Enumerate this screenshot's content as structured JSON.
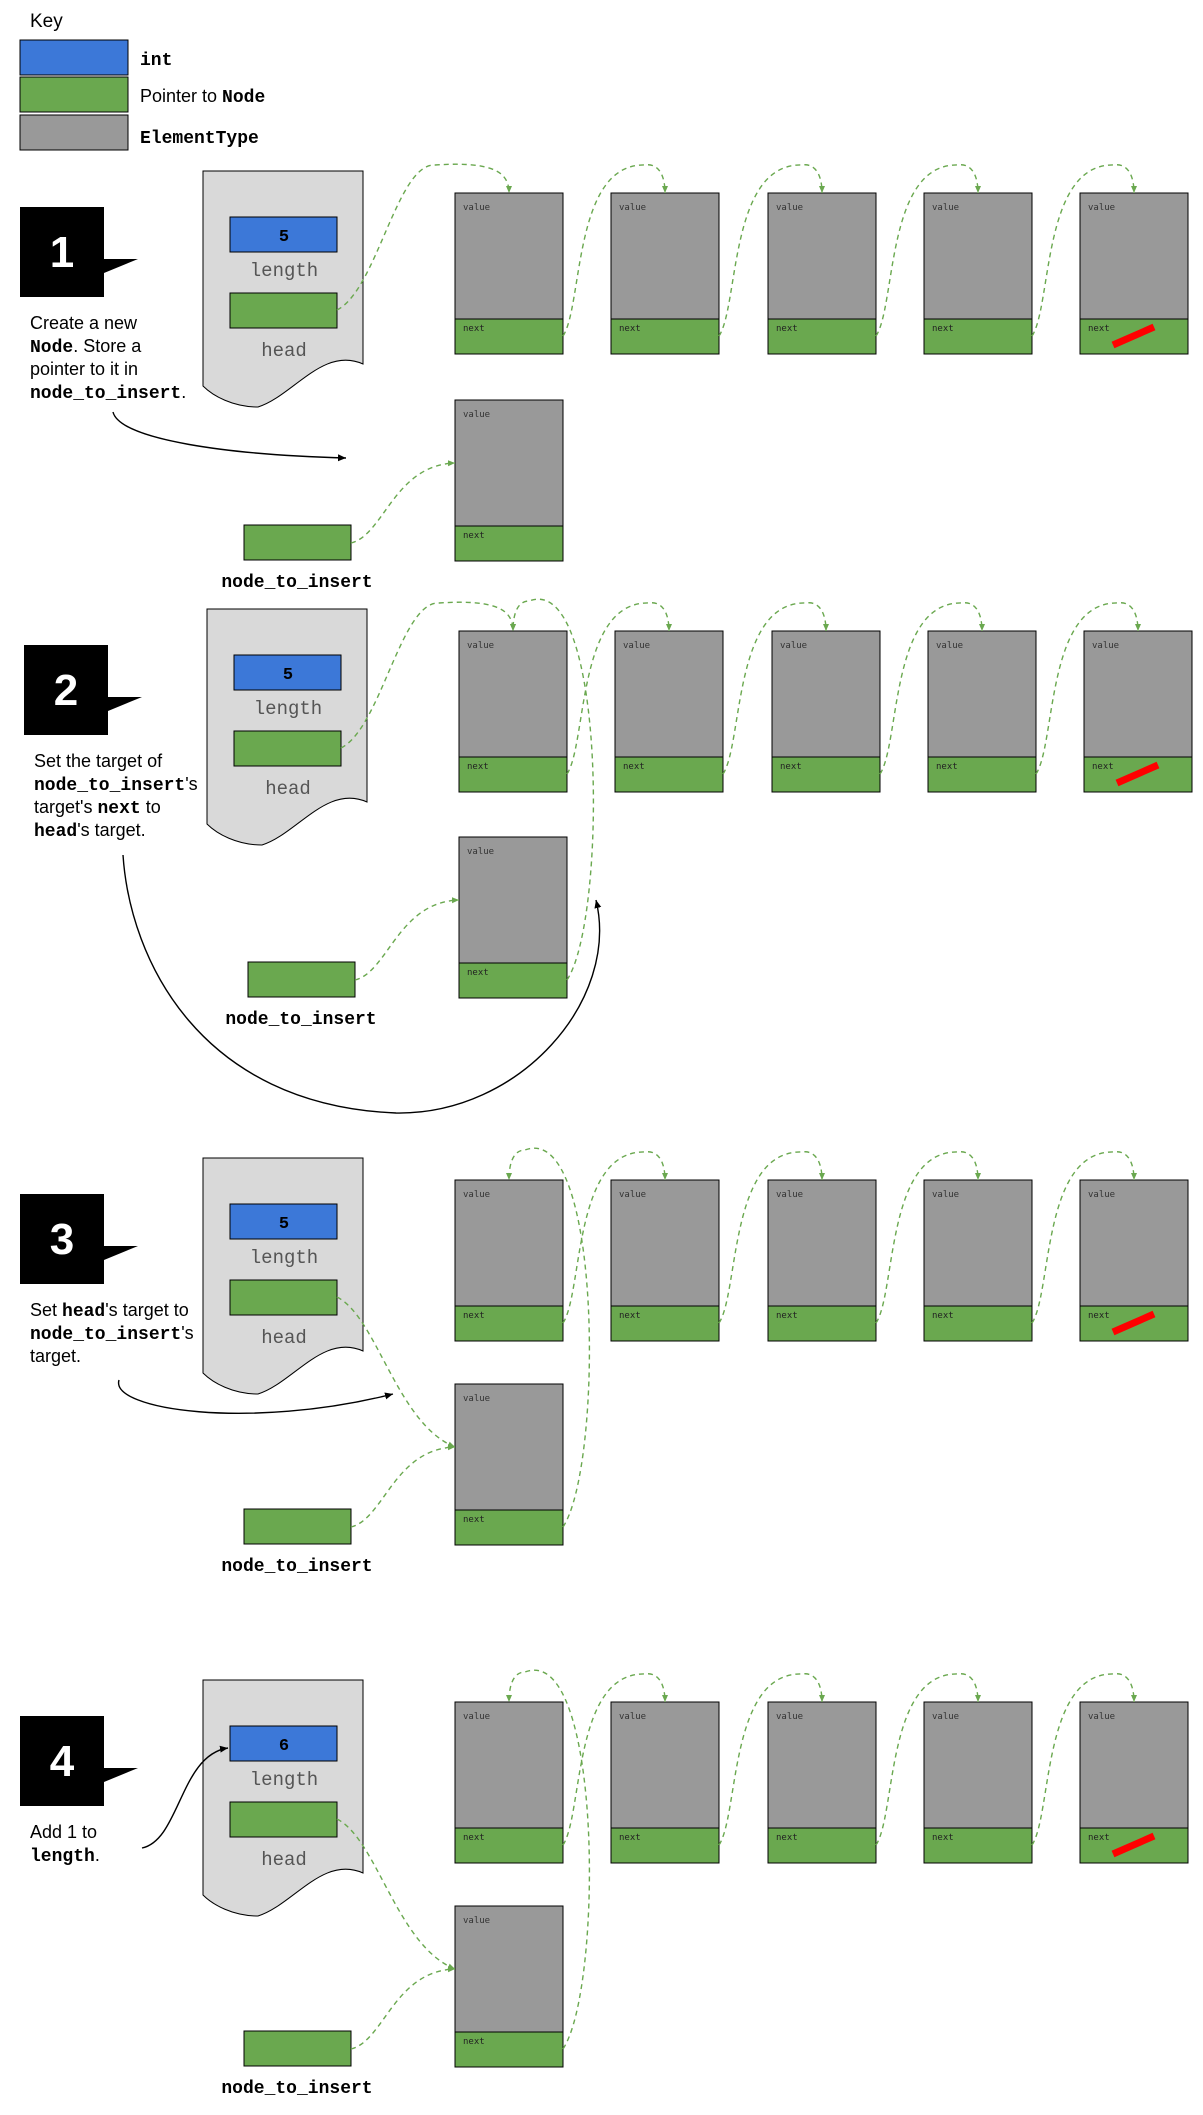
{
  "colors": {
    "int": "#3c78d8",
    "pointer": "#6aa84f",
    "element": "#999999",
    "list_bg": "#d9d9d9",
    "arrow_dashed": "#6aa84f",
    "null_mark": "#ff0000",
    "badge": "#000000"
  },
  "key": {
    "title": "Key",
    "items": [
      {
        "label": "int",
        "color": "#3c78d8",
        "mono": true,
        "icon": "int-swatch"
      },
      {
        "label_prefix": "Pointer to ",
        "label_code": "Node",
        "color": "#6aa84f",
        "icon": "pointer-swatch"
      },
      {
        "label": "ElementType",
        "color": "#999999",
        "mono": true,
        "icon": "element-swatch"
      }
    ]
  },
  "labels": {
    "length": "length",
    "head": "head",
    "value": "value",
    "next": "next",
    "node_to_insert": "node_to_insert"
  },
  "steps": [
    {
      "number": "1",
      "length_value": "5",
      "description": [
        [
          {
            "t": "Create a new",
            "code": false
          }
        ],
        [
          {
            "t": "Node",
            "code": true
          },
          {
            "t": ". Store a",
            "code": false
          }
        ],
        [
          {
            "t": "pointer to it in",
            "code": false
          }
        ],
        [
          {
            "t": "node_to_insert",
            "code": true
          },
          {
            "t": ".",
            "code": false
          }
        ]
      ]
    },
    {
      "number": "2",
      "length_value": "5",
      "description": [
        [
          {
            "t": "Set the target of",
            "code": false
          }
        ],
        [
          {
            "t": "node_to_insert",
            "code": true
          },
          {
            "t": "'s",
            "code": false
          }
        ],
        [
          {
            "t": "target's ",
            "code": false
          },
          {
            "t": "next",
            "code": true
          },
          {
            "t": " to",
            "code": false
          }
        ],
        [
          {
            "t": "head",
            "code": true
          },
          {
            "t": "'s target.",
            "code": false
          }
        ]
      ]
    },
    {
      "number": "3",
      "length_value": "5",
      "description": [
        [
          {
            "t": "Set ",
            "code": false
          },
          {
            "t": "head",
            "code": true
          },
          {
            "t": "'s target to",
            "code": false
          }
        ],
        [
          {
            "t": "node_to_insert",
            "code": true
          },
          {
            "t": "'s",
            "code": false
          }
        ],
        [
          {
            "t": "target.",
            "code": false
          }
        ]
      ]
    },
    {
      "number": "4",
      "length_value": "6",
      "description": [
        [
          {
            "t": "Add 1 to",
            "code": false
          }
        ],
        [
          {
            "t": "length",
            "code": true
          },
          {
            "t": ".",
            "code": false
          }
        ]
      ]
    }
  ]
}
